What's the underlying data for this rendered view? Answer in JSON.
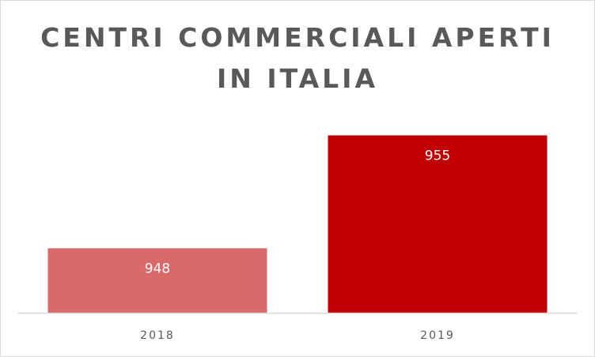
{
  "chart_data": {
    "type": "bar",
    "title_line1": "CENTRI COMMERCIALI APERTI",
    "title_line2": "IN ITALIA",
    "categories": [
      "2018",
      "2019"
    ],
    "values": [
      948,
      955
    ],
    "data_labels": [
      "948",
      "955"
    ],
    "colors": [
      "#da6a6a",
      "#c00000"
    ],
    "xlabel": "",
    "ylabel": "",
    "ylim": [
      944,
      956
    ],
    "grid": false,
    "legend": "none"
  }
}
